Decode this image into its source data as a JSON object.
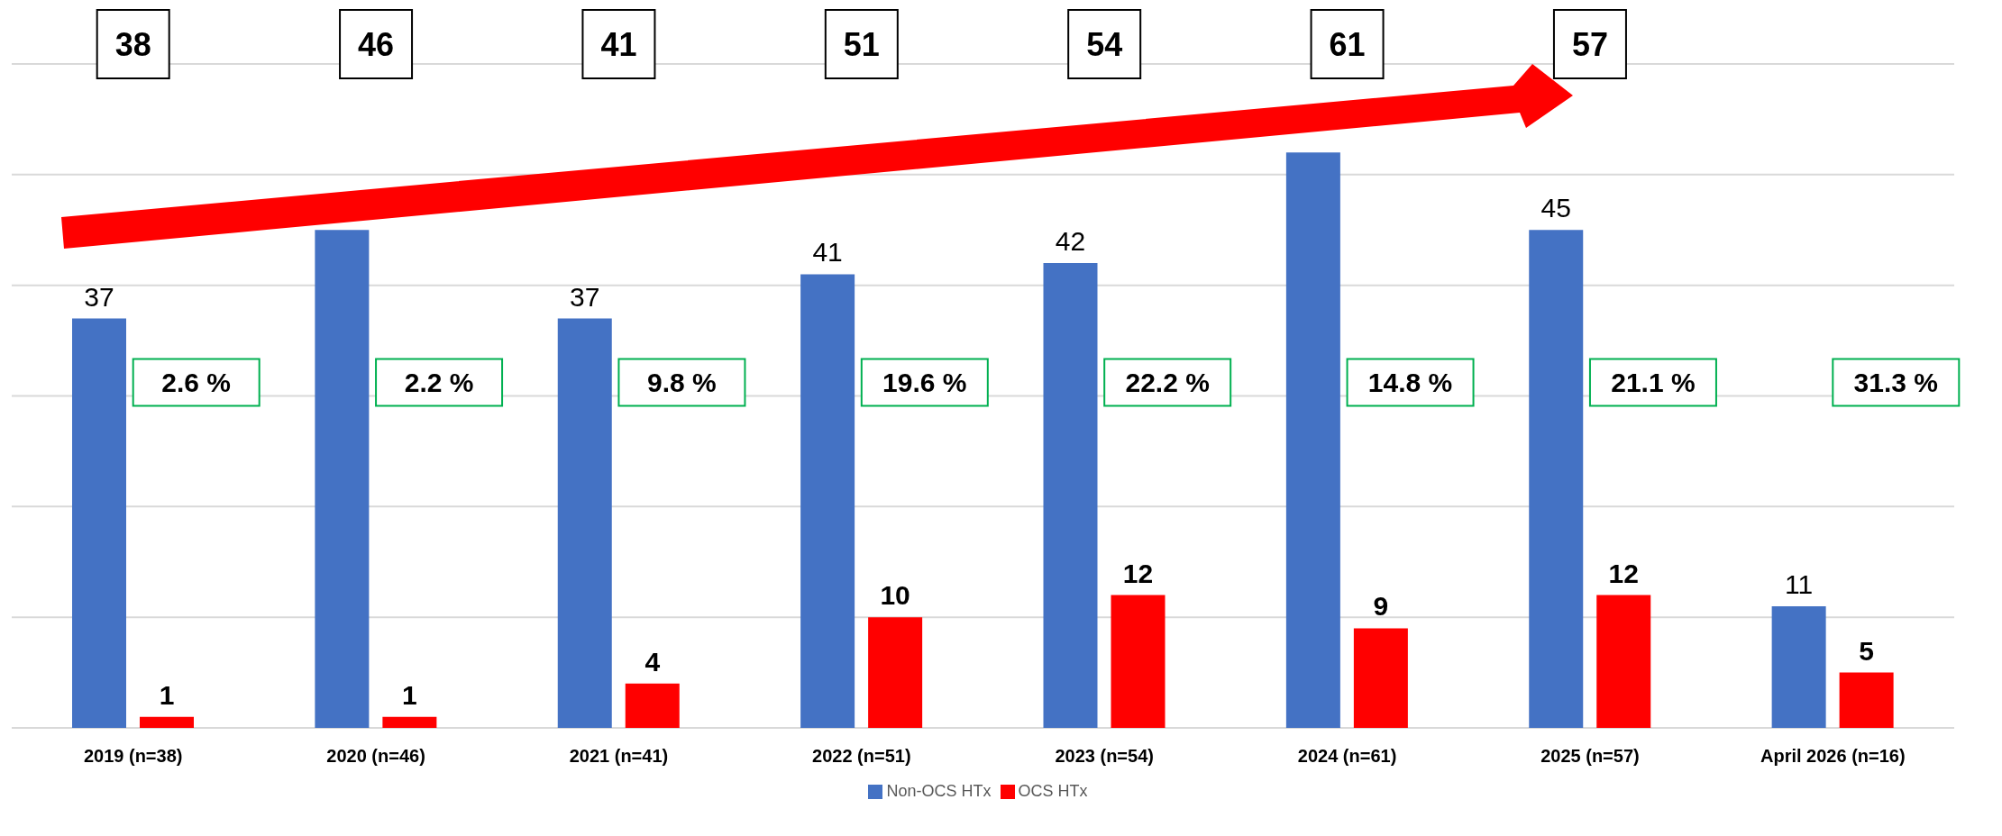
{
  "chart_data": {
    "type": "bar",
    "categories": [
      "2019 (n=38)",
      "2020 (n=46)",
      "2021 (n=41)",
      "2022 (n=51)",
      "2023 (n=54)",
      "2024 (n=61)",
      "2025 (n=57)",
      "April 2026 (n=16)"
    ],
    "series": [
      {
        "name": "Non-OCS HTx",
        "color": "#4472c4",
        "values": [
          37,
          45,
          37,
          41,
          42,
          52,
          45,
          11
        ],
        "value_labels": [
          "37",
          null,
          "37",
          "41",
          "42",
          null,
          "45",
          "11"
        ]
      },
      {
        "name": "OCS HTx",
        "color": "#ff0000",
        "values": [
          1,
          1,
          4,
          10,
          12,
          9,
          12,
          5
        ],
        "value_labels": [
          "1",
          "1",
          "4",
          "10",
          "12",
          "9",
          "12",
          "5"
        ]
      }
    ],
    "ylim": [
      0,
      60
    ],
    "yticks": [
      {
        "value": 0,
        "label": null
      },
      {
        "value": 10,
        "label": null
      },
      {
        "value": 20,
        "label": null
      },
      {
        "value": 30,
        "label": null
      },
      {
        "value": 40,
        "label": null
      },
      {
        "value": 50,
        "label": null
      },
      {
        "value": 60,
        "label": null
      }
    ],
    "tick_labels": "x",
    "grid": "y",
    "legend": "bottom",
    "annotations": [
      "38",
      "46",
      "41",
      "51",
      "54",
      "61",
      "57",
      "2.6 %",
      "2.2 %",
      "9.8 %",
      "19.6 %",
      "22.2 %",
      "14.8 %",
      "21.1 %",
      "31.3 %"
    ]
  }
}
